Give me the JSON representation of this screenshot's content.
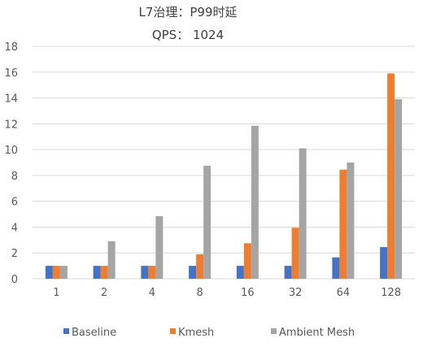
{
  "chart_data": {
    "type": "bar",
    "title": "L7治理：P99时延",
    "subtitle": "QPS：  1024",
    "categories": [
      "1",
      "2",
      "4",
      "8",
      "16",
      "32",
      "64",
      "128"
    ],
    "series": [
      {
        "name": "Baseline",
        "color": "#4472C4",
        "values": [
          1.0,
          1.0,
          1.0,
          1.0,
          1.0,
          1.0,
          1.65,
          2.45
        ]
      },
      {
        "name": "Kmesh",
        "color": "#ED7D31",
        "values": [
          1.0,
          1.0,
          1.0,
          1.9,
          2.75,
          3.95,
          8.45,
          15.9
        ]
      },
      {
        "name": "Ambient Mesh",
        "color": "#A5A5A5",
        "values": [
          1.0,
          2.9,
          4.85,
          8.75,
          11.85,
          10.1,
          9.0,
          13.9
        ]
      }
    ],
    "ylim": [
      0,
      18
    ],
    "yticks": [
      0,
      2,
      4,
      6,
      8,
      10,
      12,
      14,
      16,
      18
    ],
    "xlabel": "",
    "ylabel": "",
    "grid": true,
    "legend": "bottom"
  }
}
